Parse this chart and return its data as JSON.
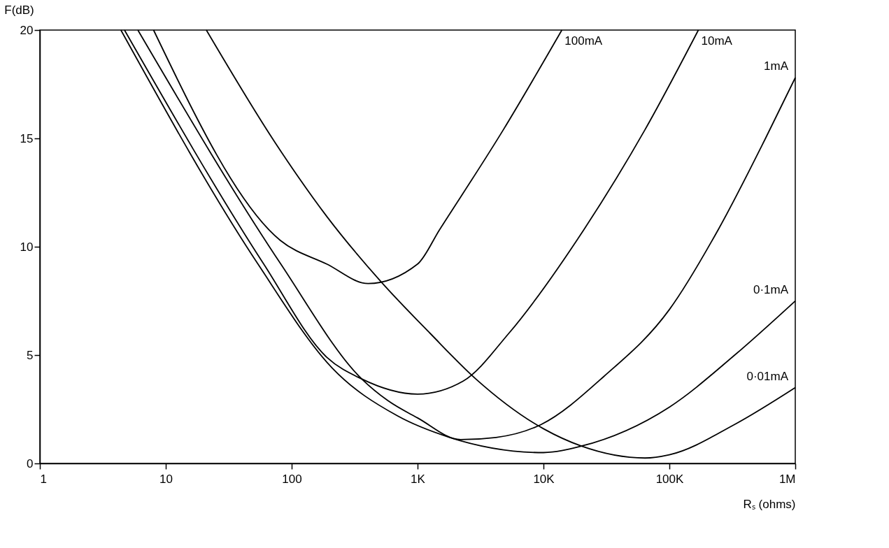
{
  "chart_data": {
    "type": "line",
    "xlabel": "Rₛ (ohms)",
    "ylabel": "F(dB)",
    "log": "x",
    "xlim": [
      1,
      1000000
    ],
    "xticks": [
      {
        "value": 1,
        "label": "1"
      },
      {
        "value": 10,
        "label": "10"
      },
      {
        "value": 100,
        "label": "100"
      },
      {
        "value": 1000,
        "label": "1K"
      },
      {
        "value": 10000,
        "label": "10K"
      },
      {
        "value": 100000,
        "label": "100K"
      },
      {
        "value": 1000000,
        "label": "1M"
      }
    ],
    "ylim": [
      0,
      20
    ],
    "yticks": [
      0,
      5,
      10,
      15,
      20
    ],
    "grid": false,
    "line_style": "solid",
    "marker": "none",
    "series": [
      {
        "name": "100mA",
        "color": "#000000",
        "x": [
          8,
          81,
          190,
          405,
          1000,
          1500,
          4800,
          14000
        ],
        "values": [
          20,
          10.3,
          9.2,
          8.3,
          9.2,
          10.8,
          15.4,
          20
        ]
      },
      {
        "name": "10mA",
        "color": "#000000",
        "x": [
          4.7,
          60,
          190,
          360,
          1000,
          2300,
          5300,
          21000,
          64000,
          170000
        ],
        "values": [
          20,
          9.2,
          4.9,
          3.9,
          3.2,
          3.8,
          6.0,
          10.8,
          15.4,
          20
        ]
      },
      {
        "name": "1mA",
        "color": "#000000",
        "x": [
          6,
          82,
          360,
          580,
          1000,
          2200,
          4200,
          9600,
          30000,
          100000,
          245000,
          580000,
          1000000
        ],
        "values": [
          20,
          9.2,
          3.9,
          2.9,
          2.1,
          1.1,
          1.2,
          1.8,
          4.0,
          7.1,
          10.8,
          15.0,
          17.8
        ]
      },
      {
        "name": "0·1mA",
        "color": "#000000",
        "x": [
          4.4,
          54,
          210,
          690,
          1800,
          10000,
          20000,
          100000,
          330000,
          1000000
        ],
        "values": [
          20,
          9.2,
          4.4,
          2.2,
          1.2,
          0.5,
          0.8,
          2.6,
          5.0,
          7.5
        ]
      },
      {
        "name": "0·01mA",
        "color": "#000000",
        "x": [
          21,
          74,
          190,
          510,
          1260,
          2900,
          10000,
          20000,
          64000,
          100000,
          330000,
          1000000
        ],
        "values": [
          20,
          14.8,
          11.4,
          8.4,
          6.0,
          3.9,
          1.6,
          0.8,
          0.25,
          0.4,
          1.8,
          3.5
        ]
      }
    ]
  }
}
